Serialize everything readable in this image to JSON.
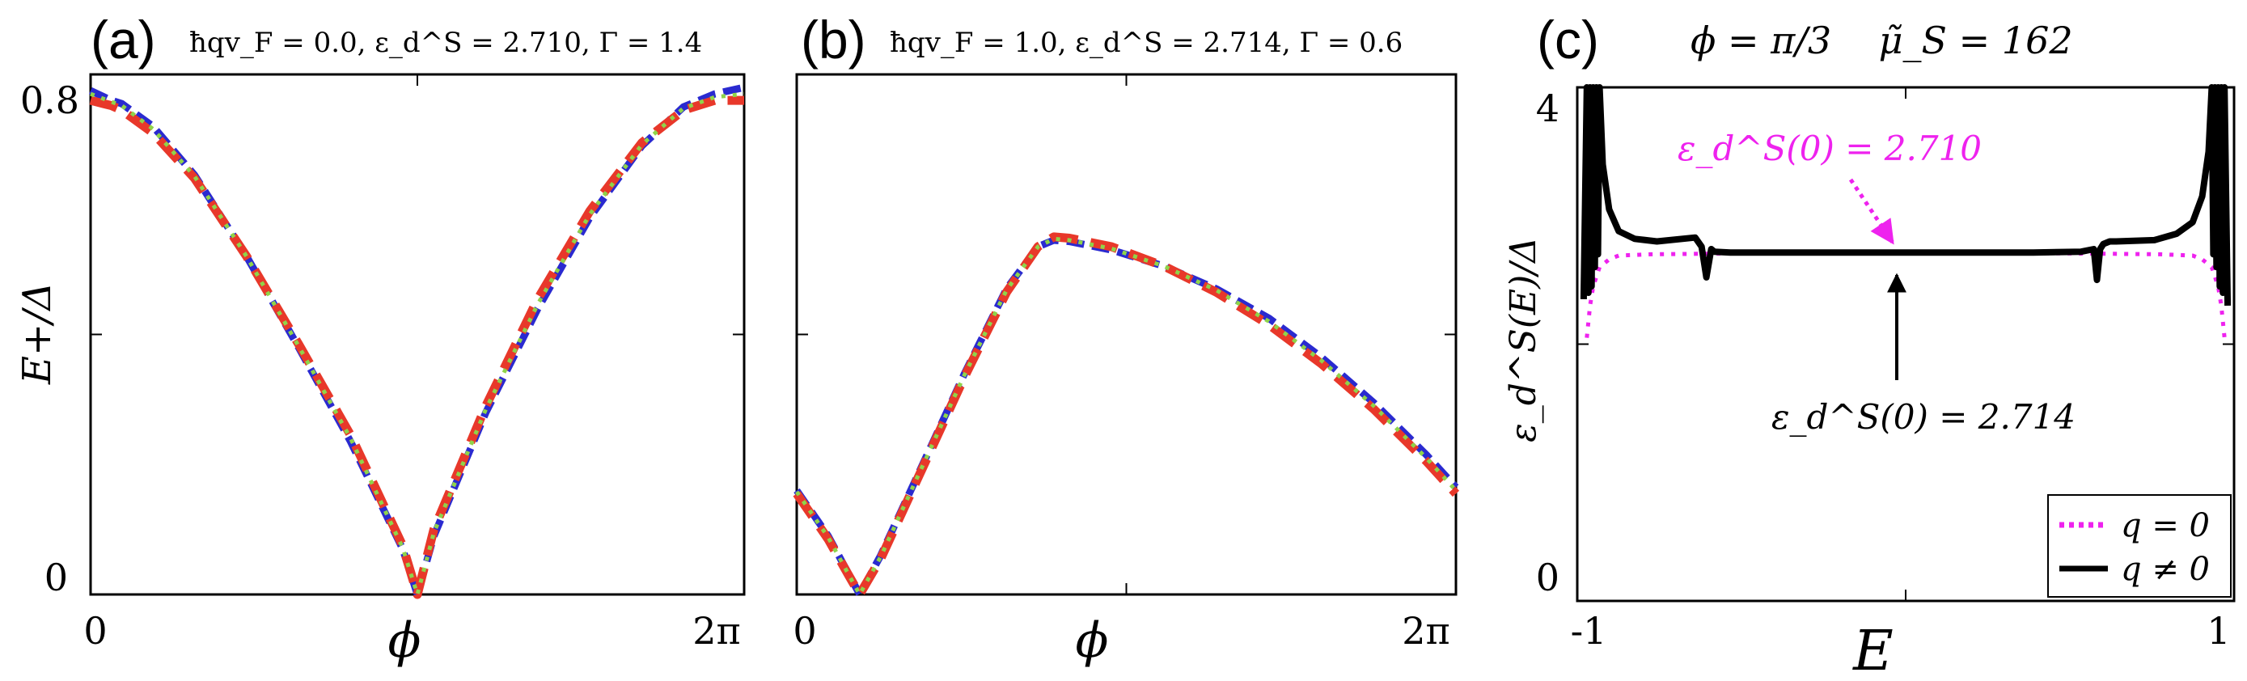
{
  "chart_data": [
    {
      "panel": "a",
      "type": "line",
      "panel_label": "(a)",
      "title": "ħqv_F = 0.0, ε_d^S = 2.710, Γ = 1.4",
      "xlabel": "ϕ",
      "ylabel": "E+/Δ",
      "xlim": [
        0,
        6.2832
      ],
      "ylim": [
        0,
        0.8
      ],
      "xtick_labels": [
        "0",
        "2π"
      ],
      "ytick_labels": [
        "0",
        "0.8"
      ],
      "grid": false,
      "series": [
        {
          "color": "#2a2ad0",
          "dash": "dashed",
          "x": [
            0,
            0.2,
            0.3,
            0.6,
            1.0,
            1.5,
            2.0,
            2.5,
            3.0,
            3.1416,
            3.3,
            3.8,
            4.3,
            4.8,
            5.3,
            5.7,
            6.0,
            6.2832
          ],
          "y": [
            0.775,
            0.76,
            0.755,
            0.72,
            0.645,
            0.52,
            0.38,
            0.235,
            0.07,
            0.0,
            0.09,
            0.28,
            0.44,
            0.58,
            0.69,
            0.75,
            0.77,
            0.78
          ]
        },
        {
          "color": "#e8382a",
          "dash": "dashed-wide",
          "x": [
            0,
            0.2,
            0.3,
            0.6,
            1.0,
            1.5,
            2.0,
            2.5,
            3.0,
            3.1416,
            3.3,
            3.8,
            4.3,
            4.8,
            5.3,
            5.7,
            6.0,
            6.2832
          ],
          "y": [
            0.76,
            0.752,
            0.745,
            0.71,
            0.64,
            0.52,
            0.385,
            0.245,
            0.075,
            0.0,
            0.1,
            0.29,
            0.455,
            0.59,
            0.695,
            0.745,
            0.76,
            0.76
          ]
        },
        {
          "color": "#8fd44a",
          "dash": "dotted",
          "x": [
            0,
            0.2,
            0.3,
            0.6,
            1.0,
            1.5,
            2.0,
            2.5,
            3.0,
            3.1416,
            3.3,
            3.8,
            4.3,
            4.8,
            5.3,
            5.7,
            6.0,
            6.2832
          ],
          "y": [
            0.77,
            0.758,
            0.752,
            0.716,
            0.643,
            0.52,
            0.382,
            0.24,
            0.072,
            0.0,
            0.095,
            0.285,
            0.447,
            0.585,
            0.692,
            0.748,
            0.765,
            0.77
          ]
        }
      ]
    },
    {
      "panel": "b",
      "type": "line",
      "panel_label": "(b)",
      "title": "ħqv_F = 1.0, ε_d^S = 2.714, Γ = 0.6",
      "xlabel": "ϕ",
      "ylabel": "",
      "xlim": [
        0,
        6.2832
      ],
      "ylim": [
        0,
        0.8
      ],
      "xtick_labels": [
        "0",
        "2π"
      ],
      "ytick_labels": [],
      "grid": false,
      "series": [
        {
          "color": "#2a2ad0",
          "dash": "dashed",
          "x": [
            0,
            0.3,
            0.5,
            0.6,
            0.8,
            1.2,
            1.6,
            2.0,
            2.3,
            2.45,
            2.6,
            3.0,
            3.5,
            4.0,
            4.5,
            5.0,
            5.5,
            6.0,
            6.2832
          ],
          "y": [
            0.16,
            0.09,
            0.03,
            0.0,
            0.06,
            0.2,
            0.34,
            0.47,
            0.535,
            0.545,
            0.543,
            0.53,
            0.505,
            0.47,
            0.425,
            0.365,
            0.295,
            0.215,
            0.165
          ]
        },
        {
          "color": "#e8382a",
          "dash": "dashed-wide",
          "x": [
            0,
            0.3,
            0.5,
            0.6,
            0.8,
            1.2,
            1.6,
            2.0,
            2.3,
            2.45,
            2.6,
            3.0,
            3.5,
            4.0,
            4.5,
            5.0,
            5.5,
            6.0,
            6.2832
          ],
          "y": [
            0.155,
            0.085,
            0.028,
            0.0,
            0.055,
            0.195,
            0.335,
            0.465,
            0.535,
            0.55,
            0.548,
            0.535,
            0.505,
            0.465,
            0.415,
            0.355,
            0.285,
            0.205,
            0.155
          ]
        },
        {
          "color": "#8fd44a",
          "dash": "dotted",
          "x": [
            0,
            0.3,
            0.5,
            0.6,
            0.8,
            1.2,
            1.6,
            2.0,
            2.3,
            2.45,
            2.6,
            3.0,
            3.5,
            4.0,
            4.5,
            5.0,
            5.5,
            6.0,
            6.2832
          ],
          "y": [
            0.158,
            0.088,
            0.029,
            0.0,
            0.058,
            0.198,
            0.338,
            0.468,
            0.535,
            0.547,
            0.545,
            0.532,
            0.505,
            0.468,
            0.42,
            0.36,
            0.29,
            0.21,
            0.16
          ]
        }
      ]
    },
    {
      "panel": "c",
      "type": "line",
      "panel_label": "(c)",
      "title": "ϕ = π/3    μ̃_S = 162",
      "xlabel": "E",
      "ylabel": "ε_d^S(E)/Δ",
      "xlim": [
        -1.03,
        1.03
      ],
      "ylim": [
        0,
        4
      ],
      "xtick_labels": [
        "-1",
        "1"
      ],
      "ytick_labels": [
        "0",
        "4"
      ],
      "grid": false,
      "legend_position": "bottom-right",
      "series": [
        {
          "name": "q = 0",
          "color": "#ee22ee",
          "dash": "dotted",
          "x": [
            -1.0,
            -0.99,
            -0.98,
            -0.96,
            -0.93,
            -0.9,
            -0.8,
            -0.6,
            -0.4,
            -0.2,
            0.0,
            0.2,
            0.4,
            0.6,
            0.8,
            0.9,
            0.93,
            0.96,
            0.98,
            0.99,
            1.0
          ],
          "y": [
            2.05,
            2.3,
            2.45,
            2.6,
            2.66,
            2.69,
            2.7,
            2.705,
            2.708,
            2.71,
            2.71,
            2.71,
            2.708,
            2.705,
            2.7,
            2.69,
            2.66,
            2.6,
            2.45,
            2.3,
            2.05
          ]
        },
        {
          "name": "q ≠ 0",
          "color": "#000000",
          "dash": "solid",
          "x": [
            -1.01,
            -1.0,
            -0.995,
            -0.99,
            -0.985,
            -0.98,
            -0.975,
            -0.97,
            -0.965,
            -0.96,
            -0.95,
            -0.93,
            -0.9,
            -0.85,
            -0.78,
            -0.66,
            -0.64,
            -0.625,
            -0.61,
            -0.6,
            -0.55,
            -0.4,
            -0.2,
            0.0,
            0.2,
            0.4,
            0.55,
            0.59,
            0.6,
            0.61,
            0.62,
            0.64,
            0.66,
            0.78,
            0.85,
            0.9,
            0.93,
            0.95,
            0.96,
            0.965,
            0.97,
            0.975,
            0.98,
            0.985,
            0.99,
            0.995,
            1.0,
            1.01
          ],
          "y": [
            2.35,
            4.0,
            2.4,
            4.0,
            2.45,
            4.0,
            2.6,
            4.0,
            2.7,
            4.0,
            3.4,
            3.05,
            2.88,
            2.82,
            2.8,
            2.83,
            2.76,
            2.52,
            2.74,
            2.72,
            2.713,
            2.714,
            2.714,
            2.714,
            2.714,
            2.714,
            2.72,
            2.74,
            2.5,
            2.74,
            2.78,
            2.8,
            2.8,
            2.81,
            2.86,
            2.95,
            3.15,
            3.5,
            4.0,
            2.7,
            4.0,
            2.6,
            4.0,
            2.45,
            4.0,
            2.4,
            4.0,
            2.3
          ]
        }
      ],
      "annotations": [
        {
          "text": "ε_d^S(0) = 2.710",
          "color": "#ee22ee",
          "arrow_to": [
            0.0,
            2.71
          ],
          "style": "dotted"
        },
        {
          "text": "ε_d^S(0) = 2.714",
          "color": "#000000",
          "arrow_to": [
            0.0,
            2.714
          ],
          "style": "solid"
        }
      ]
    }
  ]
}
